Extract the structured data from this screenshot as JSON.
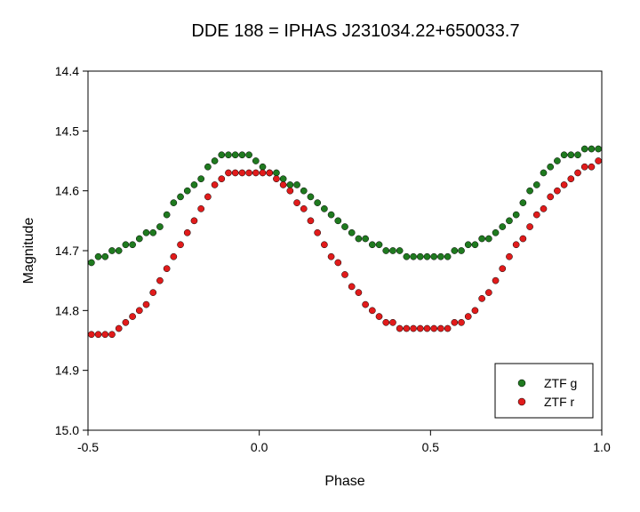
{
  "chart_data": {
    "type": "scatter",
    "title": "DDE 188 = IPHAS J231034.22+650033.7",
    "xlabel": "Phase",
    "ylabel": "Magnitude",
    "xlim": [
      -0.5,
      1.0
    ],
    "ylim": [
      14.4,
      15.0
    ],
    "y_inverted": true,
    "x_ticks": [
      "-0.5",
      "0.0",
      "0.5",
      "1.0"
    ],
    "y_ticks": [
      "14.4",
      "14.5",
      "14.6",
      "14.7",
      "14.8",
      "14.9",
      "15.0"
    ],
    "grid": false,
    "legend_position": "bottom-right",
    "series": [
      {
        "name": "ZTF g",
        "color": "#1f7a1f",
        "x": [
          -0.49,
          -0.47,
          -0.45,
          -0.43,
          -0.41,
          -0.39,
          -0.37,
          -0.35,
          -0.33,
          -0.31,
          -0.29,
          -0.27,
          -0.25,
          -0.23,
          -0.21,
          -0.19,
          -0.17,
          -0.15,
          -0.13,
          -0.11,
          -0.09,
          -0.07,
          -0.05,
          -0.03,
          -0.01,
          0.01,
          0.03,
          0.05,
          0.07,
          0.09,
          0.11,
          0.13,
          0.15,
          0.17,
          0.19,
          0.21,
          0.23,
          0.25,
          0.27,
          0.29,
          0.31,
          0.33,
          0.35,
          0.37,
          0.39,
          0.41,
          0.43,
          0.45,
          0.47,
          0.49,
          0.51,
          0.53,
          0.55,
          0.57,
          0.59,
          0.61,
          0.63,
          0.65,
          0.67,
          0.69,
          0.71,
          0.73,
          0.75,
          0.77,
          0.79,
          0.81,
          0.83,
          0.85,
          0.87,
          0.89,
          0.91,
          0.93,
          0.95,
          0.97,
          0.99
        ],
        "y": [
          14.72,
          14.71,
          14.71,
          14.7,
          14.7,
          14.69,
          14.69,
          14.68,
          14.67,
          14.67,
          14.66,
          14.64,
          14.62,
          14.61,
          14.6,
          14.59,
          14.58,
          14.56,
          14.55,
          14.54,
          14.54,
          14.54,
          14.54,
          14.54,
          14.55,
          14.56,
          14.57,
          14.57,
          14.58,
          14.59,
          14.59,
          14.6,
          14.61,
          14.62,
          14.63,
          14.64,
          14.65,
          14.66,
          14.67,
          14.68,
          14.68,
          14.69,
          14.69,
          14.7,
          14.7,
          14.7,
          14.71,
          14.71,
          14.71,
          14.71,
          14.71,
          14.71,
          14.71,
          14.7,
          14.7,
          14.69,
          14.69,
          14.68,
          14.68,
          14.67,
          14.66,
          14.65,
          14.64,
          14.62,
          14.6,
          14.59,
          14.57,
          14.56,
          14.55,
          14.54,
          14.54,
          14.54,
          14.53,
          14.53,
          14.53
        ]
      },
      {
        "name": "ZTF r",
        "color": "#e11b1b",
        "x": [
          -0.49,
          -0.47,
          -0.45,
          -0.43,
          -0.41,
          -0.39,
          -0.37,
          -0.35,
          -0.33,
          -0.31,
          -0.29,
          -0.27,
          -0.25,
          -0.23,
          -0.21,
          -0.19,
          -0.17,
          -0.15,
          -0.13,
          -0.11,
          -0.09,
          -0.07,
          -0.05,
          -0.03,
          -0.01,
          0.01,
          0.03,
          0.05,
          0.07,
          0.09,
          0.11,
          0.13,
          0.15,
          0.17,
          0.19,
          0.21,
          0.23,
          0.25,
          0.27,
          0.29,
          0.31,
          0.33,
          0.35,
          0.37,
          0.39,
          0.41,
          0.43,
          0.45,
          0.47,
          0.49,
          0.51,
          0.53,
          0.55,
          0.57,
          0.59,
          0.61,
          0.63,
          0.65,
          0.67,
          0.69,
          0.71,
          0.73,
          0.75,
          0.77,
          0.79,
          0.81,
          0.83,
          0.85,
          0.87,
          0.89,
          0.91,
          0.93,
          0.95,
          0.97,
          0.99
        ],
        "y": [
          14.84,
          14.84,
          14.84,
          14.84,
          14.83,
          14.82,
          14.81,
          14.8,
          14.79,
          14.77,
          14.75,
          14.73,
          14.71,
          14.69,
          14.67,
          14.65,
          14.63,
          14.61,
          14.59,
          14.58,
          14.57,
          14.57,
          14.57,
          14.57,
          14.57,
          14.57,
          14.57,
          14.58,
          14.59,
          14.6,
          14.62,
          14.63,
          14.65,
          14.67,
          14.69,
          14.71,
          14.72,
          14.74,
          14.76,
          14.77,
          14.79,
          14.8,
          14.81,
          14.82,
          14.82,
          14.83,
          14.83,
          14.83,
          14.83,
          14.83,
          14.83,
          14.83,
          14.83,
          14.82,
          14.82,
          14.81,
          14.8,
          14.78,
          14.77,
          14.75,
          14.73,
          14.71,
          14.69,
          14.68,
          14.66,
          14.64,
          14.63,
          14.61,
          14.6,
          14.59,
          14.58,
          14.57,
          14.56,
          14.56,
          14.55
        ]
      }
    ]
  }
}
